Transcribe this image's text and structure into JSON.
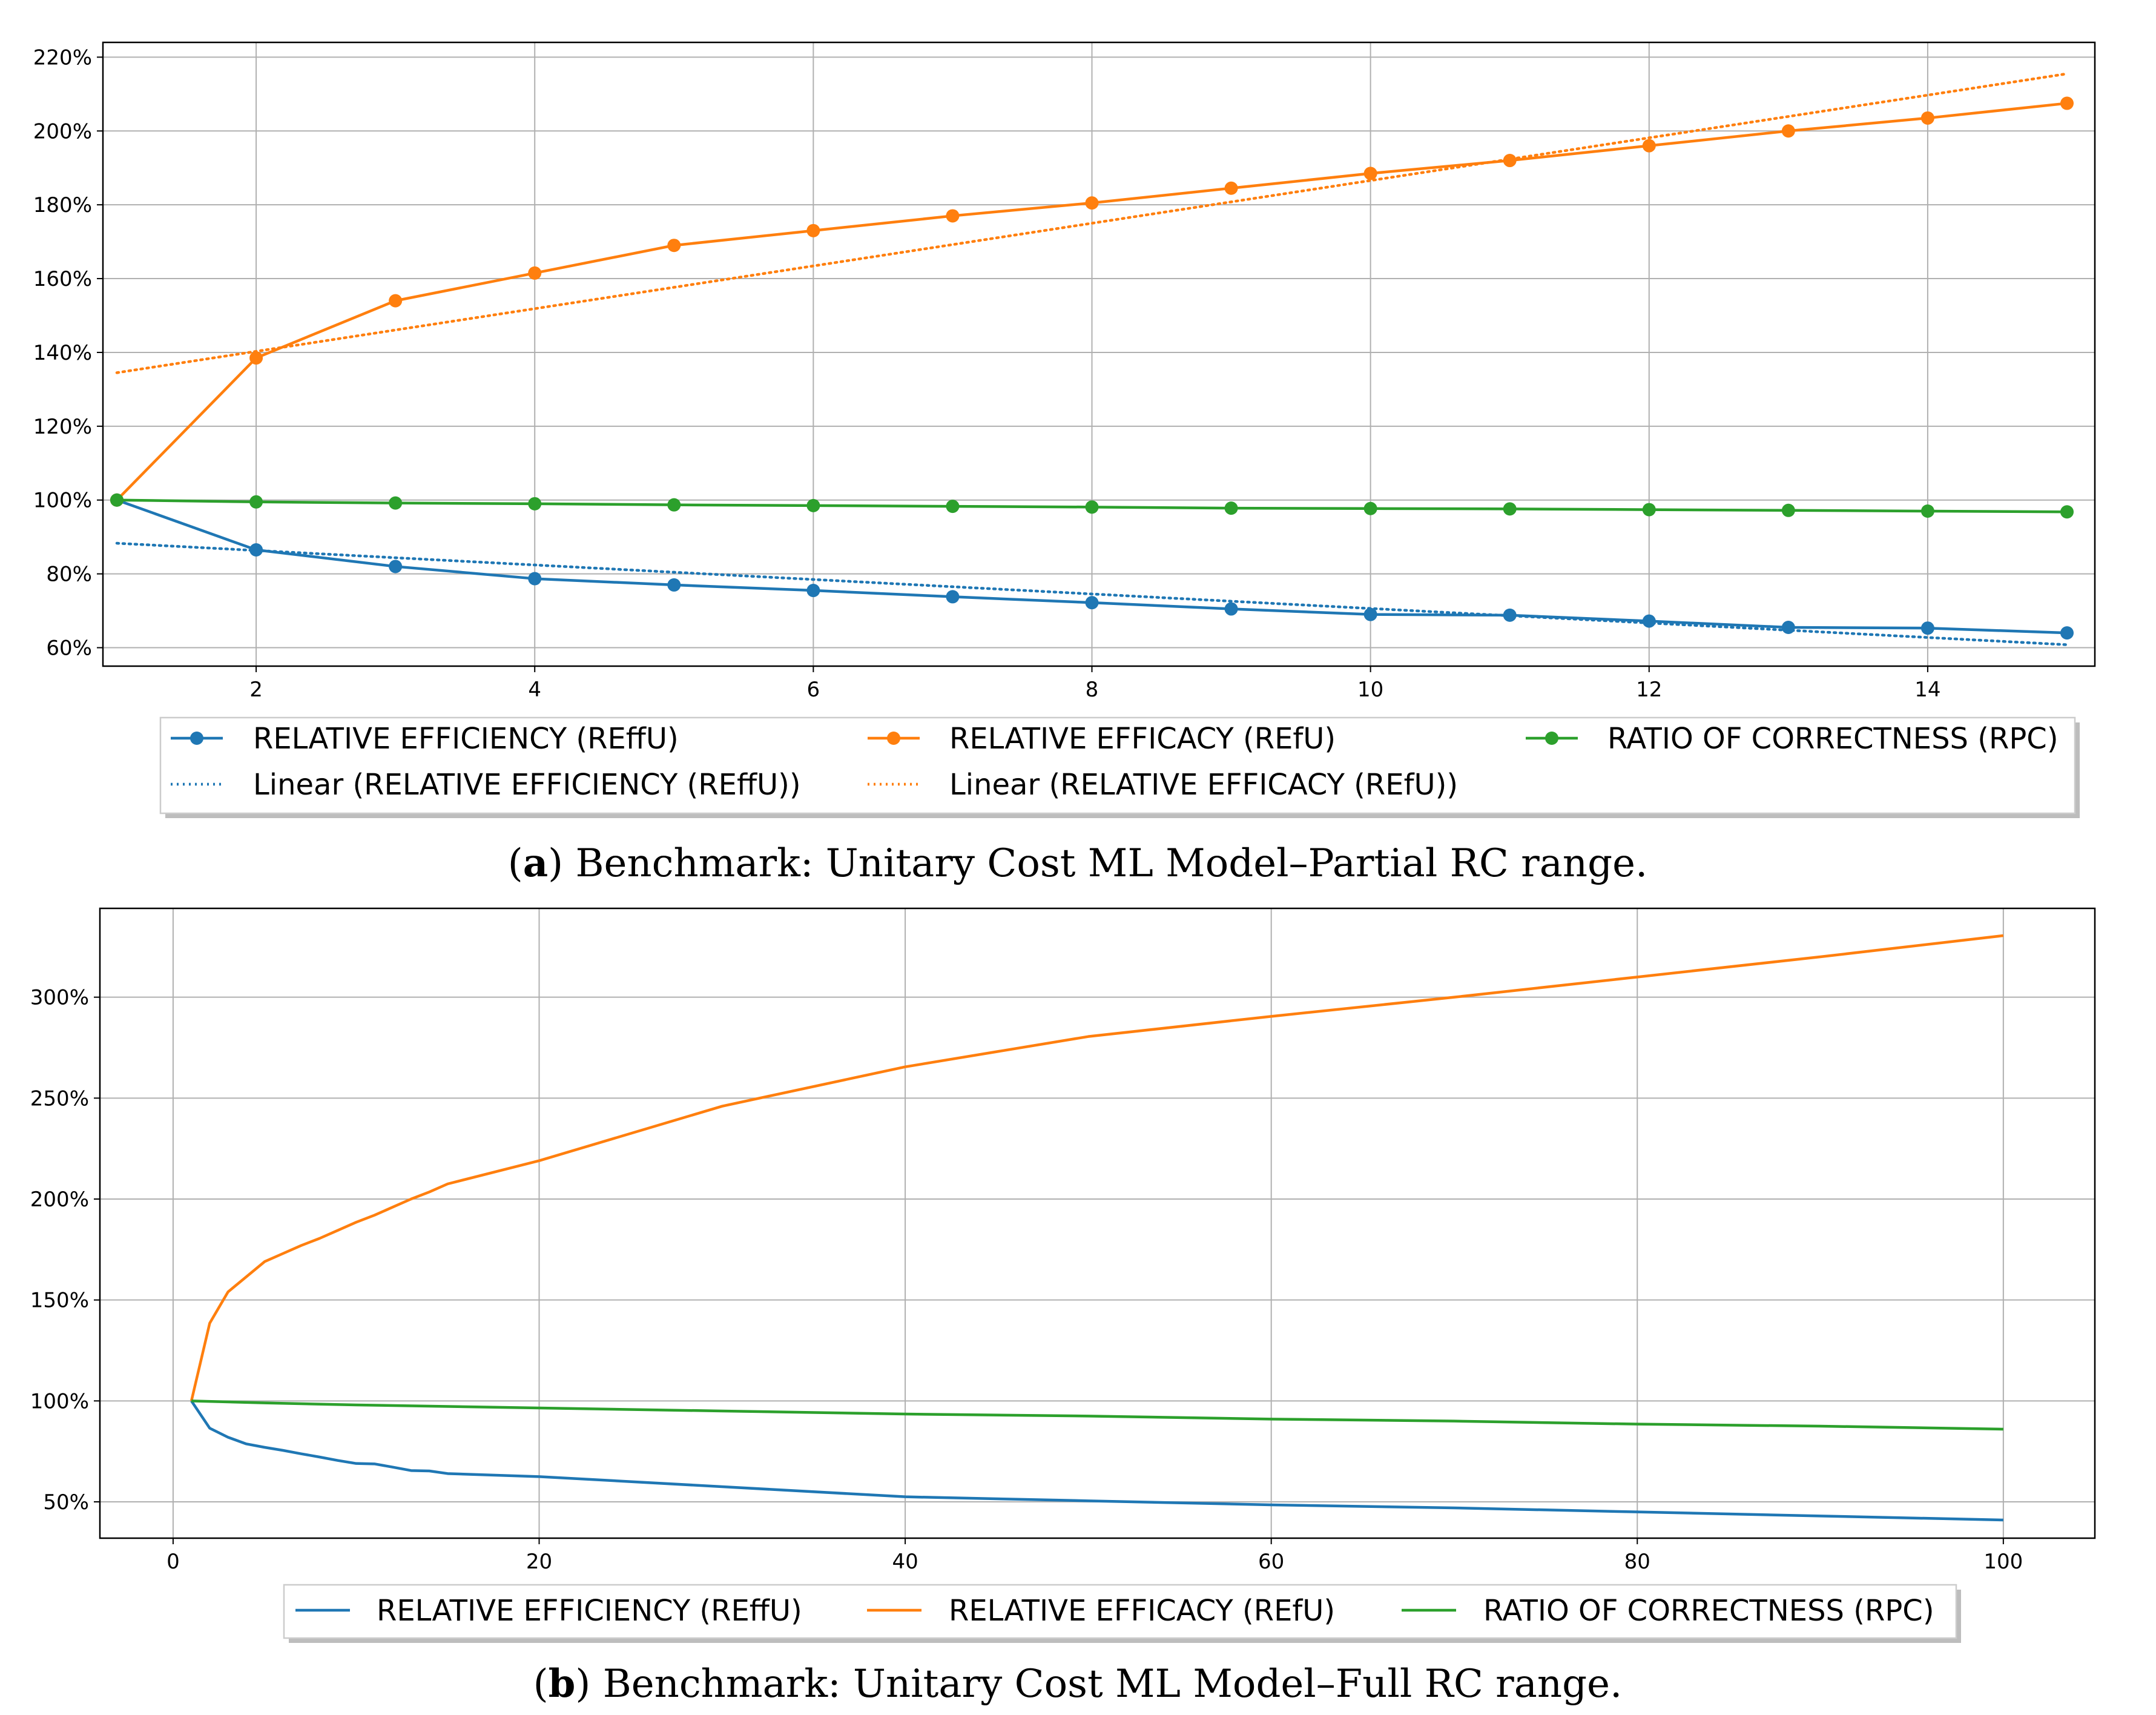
{
  "colors": {
    "efficiency": "#1f77b4",
    "efficacy": "#ff7f0e",
    "correctness": "#2ca02c",
    "grid": "#b0b0b0",
    "axis": "#000000"
  },
  "chart_data": [
    {
      "type": "line",
      "id": "a",
      "title": "",
      "caption_letter": "a",
      "caption_text": ") Benchmark: Unitary Cost ML Model–Partial RC range.",
      "caption_paren": "(",
      "xlabel": "",
      "ylabel": "",
      "xlim": [
        0.9,
        15.2
      ],
      "ylim": [
        55,
        224
      ],
      "xticks": [
        2,
        4,
        6,
        8,
        10,
        12,
        14
      ],
      "xtick_labels": [
        "2",
        "4",
        "6",
        "8",
        "10",
        "12",
        "14"
      ],
      "yticks": [
        60,
        80,
        100,
        120,
        140,
        160,
        180,
        200,
        220
      ],
      "ytick_labels": [
        "60%",
        "80%",
        "100%",
        "120%",
        "140%",
        "160%",
        "180%",
        "200%",
        "220%"
      ],
      "grid": true,
      "x": [
        1,
        2,
        3,
        4,
        5,
        6,
        7,
        8,
        9,
        10,
        11,
        12,
        13,
        14,
        15
      ],
      "series": [
        {
          "key": "efficiency",
          "name": "RELATIVE EFFICIENCY (REffU)",
          "markers": true,
          "values": [
            100,
            86.5,
            82,
            78.7,
            77,
            75.5,
            73.8,
            72.2,
            70.5,
            69,
            68.8,
            67.2,
            65.5,
            65.3,
            64
          ]
        },
        {
          "key": "efficacy",
          "name": "RELATIVE EFFICACY (REfU)",
          "markers": true,
          "values": [
            100,
            138.5,
            154,
            161.5,
            169,
            173,
            177,
            180.5,
            184.5,
            188.5,
            192,
            196,
            200,
            203.5,
            207.5
          ]
        },
        {
          "key": "correctness",
          "name": "RATIO OF CORRECTNESS (RPC)",
          "markers": true,
          "values": [
            100,
            99.5,
            99.2,
            99,
            98.7,
            98.5,
            98.3,
            98.1,
            97.8,
            97.7,
            97.6,
            97.4,
            97.2,
            97,
            96.8
          ]
        }
      ],
      "trendlines": [
        {
          "key": "efficiency",
          "name": "Linear (RELATIVE EFFICIENCY (REffU))",
          "x": [
            1,
            15
          ],
          "values": [
            88.3,
            60.8
          ]
        },
        {
          "key": "efficacy",
          "name": "Linear (RELATIVE EFFICACY (REfU))",
          "x": [
            1,
            15
          ],
          "values": [
            134.5,
            215.5
          ]
        }
      ],
      "legend": "bottom-center"
    },
    {
      "type": "line",
      "id": "b",
      "title": "",
      "caption_letter": "b",
      "caption_text": ") Benchmark: Unitary Cost ML Model–Full RC range.",
      "caption_paren": "(",
      "xlabel": "",
      "ylabel": "",
      "xlim": [
        -4,
        105
      ],
      "ylim": [
        32,
        344
      ],
      "xticks": [
        0,
        20,
        40,
        60,
        80,
        100
      ],
      "xtick_labels": [
        "0",
        "20",
        "40",
        "60",
        "80",
        "100"
      ],
      "yticks": [
        50,
        100,
        150,
        200,
        250,
        300
      ],
      "ytick_labels": [
        "50%",
        "100%",
        "150%",
        "200%",
        "250%",
        "300%"
      ],
      "grid": true,
      "series": [
        {
          "key": "efficiency",
          "name": "RELATIVE EFFICIENCY (REffU)",
          "markers": false,
          "x": [
            1,
            2,
            3,
            4,
            5,
            6,
            7,
            8,
            9,
            10,
            11,
            12,
            13,
            14,
            15,
            20,
            30,
            40,
            50,
            60,
            70,
            80,
            90,
            100
          ],
          "values": [
            100,
            86.5,
            82,
            78.7,
            77,
            75.5,
            73.8,
            72.2,
            70.5,
            69,
            68.8,
            67.2,
            65.5,
            65.3,
            64,
            62.5,
            57.5,
            52.5,
            50.5,
            48.5,
            47,
            45,
            43,
            41
          ]
        },
        {
          "key": "efficacy",
          "name": "RELATIVE EFFICACY (REfU)",
          "markers": false,
          "x": [
            1,
            2,
            3,
            4,
            5,
            6,
            7,
            8,
            9,
            10,
            11,
            12,
            13,
            14,
            15,
            20,
            30,
            40,
            50,
            60,
            70,
            80,
            90,
            100
          ],
          "values": [
            100,
            138.5,
            154,
            161.5,
            169,
            173,
            177,
            180.5,
            184.5,
            188.5,
            192,
            196,
            200,
            203.5,
            207.5,
            219,
            246,
            265.5,
            280.5,
            290.5,
            300,
            310,
            320,
            330.5
          ]
        },
        {
          "key": "correctness",
          "name": "RATIO OF CORRECTNESS (RPC)",
          "markers": false,
          "x": [
            1,
            5,
            10,
            20,
            30,
            40,
            50,
            60,
            70,
            80,
            90,
            100
          ],
          "values": [
            100,
            99,
            98,
            96.5,
            95,
            93.5,
            92.5,
            91,
            90,
            88.5,
            87.5,
            86
          ]
        }
      ],
      "legend": "bottom-center"
    }
  ]
}
